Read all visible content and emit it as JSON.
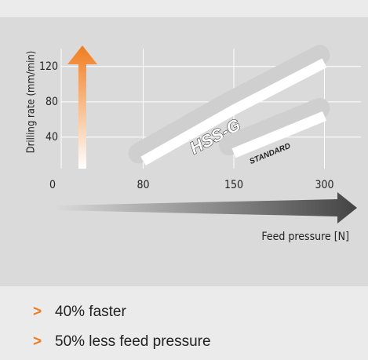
{
  "chart_data": {
    "type": "line",
    "ylabel": "Drilling rate (mm/min)",
    "xlabel": "Feed pressure [N]",
    "categories": [
      "0",
      "80",
      "150",
      "300"
    ],
    "ylim": [
      0,
      142
    ],
    "yticks": [
      40,
      80,
      120
    ],
    "grid": true,
    "series": [
      {
        "name": "HSS-G",
        "color": "#ffffff",
        "values": [
          null,
          13,
          71,
          124
        ]
      },
      {
        "name": "STANDARD",
        "color": "#ffffff",
        "values": [
          null,
          null,
          22,
          64
        ]
      }
    ]
  },
  "bullets": [
    "40% faster",
    "50% less feed pressure"
  ]
}
